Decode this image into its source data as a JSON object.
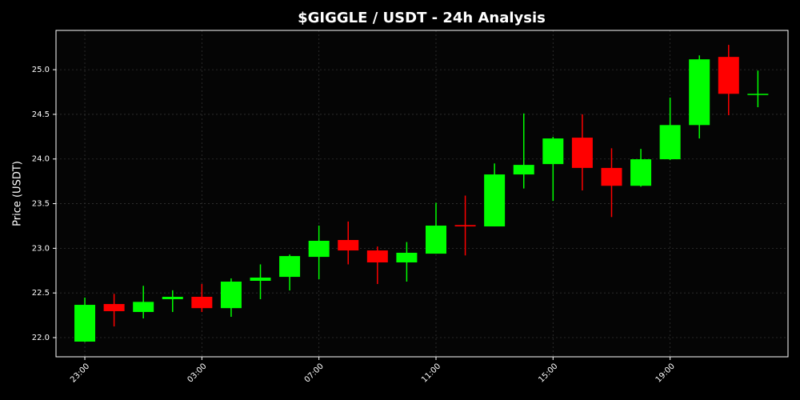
{
  "chart_data": {
    "type": "candlestick",
    "title": "$GIGGLE / USDT - 24h Analysis",
    "y_label": "Price (USDT)",
    "categories": [
      "23:00",
      null,
      null,
      null,
      "03:00",
      null,
      null,
      null,
      "07:00",
      null,
      null,
      null,
      "11:00",
      null,
      null,
      null,
      "15:00",
      null,
      null,
      null,
      "19:00",
      null,
      null,
      null
    ],
    "open": [
      21.955,
      22.376,
      22.287,
      22.43,
      22.457,
      22.33,
      22.636,
      22.68,
      22.904,
      23.093,
      22.976,
      22.842,
      22.94,
      23.26,
      23.245,
      23.827,
      23.943,
      24.239,
      23.9,
      23.7,
      23.997,
      24.38,
      25.143,
      24.72
    ],
    "high": [
      22.448,
      22.49,
      22.58,
      22.53,
      22.6,
      22.663,
      22.82,
      22.93,
      23.254,
      23.3,
      23.02,
      23.07,
      23.51,
      23.59,
      23.95,
      24.51,
      24.248,
      24.5,
      24.12,
      24.113,
      24.687,
      25.16,
      25.278,
      24.99
    ],
    "low": [
      21.95,
      22.125,
      22.215,
      22.287,
      22.287,
      22.233,
      22.43,
      22.528,
      22.654,
      22.82,
      22.6,
      22.627,
      22.94,
      22.92,
      23.245,
      23.67,
      23.53,
      23.648,
      23.35,
      23.69,
      23.988,
      24.23,
      24.49,
      24.58
    ],
    "close": [
      22.367,
      22.296,
      22.4,
      22.457,
      22.33,
      22.627,
      22.672,
      22.913,
      23.084,
      22.976,
      22.842,
      22.95,
      23.254,
      23.245,
      23.827,
      23.934,
      24.23,
      23.9,
      23.7,
      23.997,
      24.38,
      25.116,
      24.73,
      24.73
    ],
    "up_color": "#00ff00",
    "down_color": "#ff0000",
    "ylim": [
      21.785,
      25.44
    ],
    "yticks": [
      {
        "value": 22,
        "label": "22.0"
      },
      22.5,
      {
        "value": 23,
        "label": "23.0"
      },
      23.5,
      {
        "value": 24,
        "label": "24.0"
      },
      24.5,
      {
        "value": 25,
        "label": "25.0"
      }
    ],
    "grid": true
  }
}
